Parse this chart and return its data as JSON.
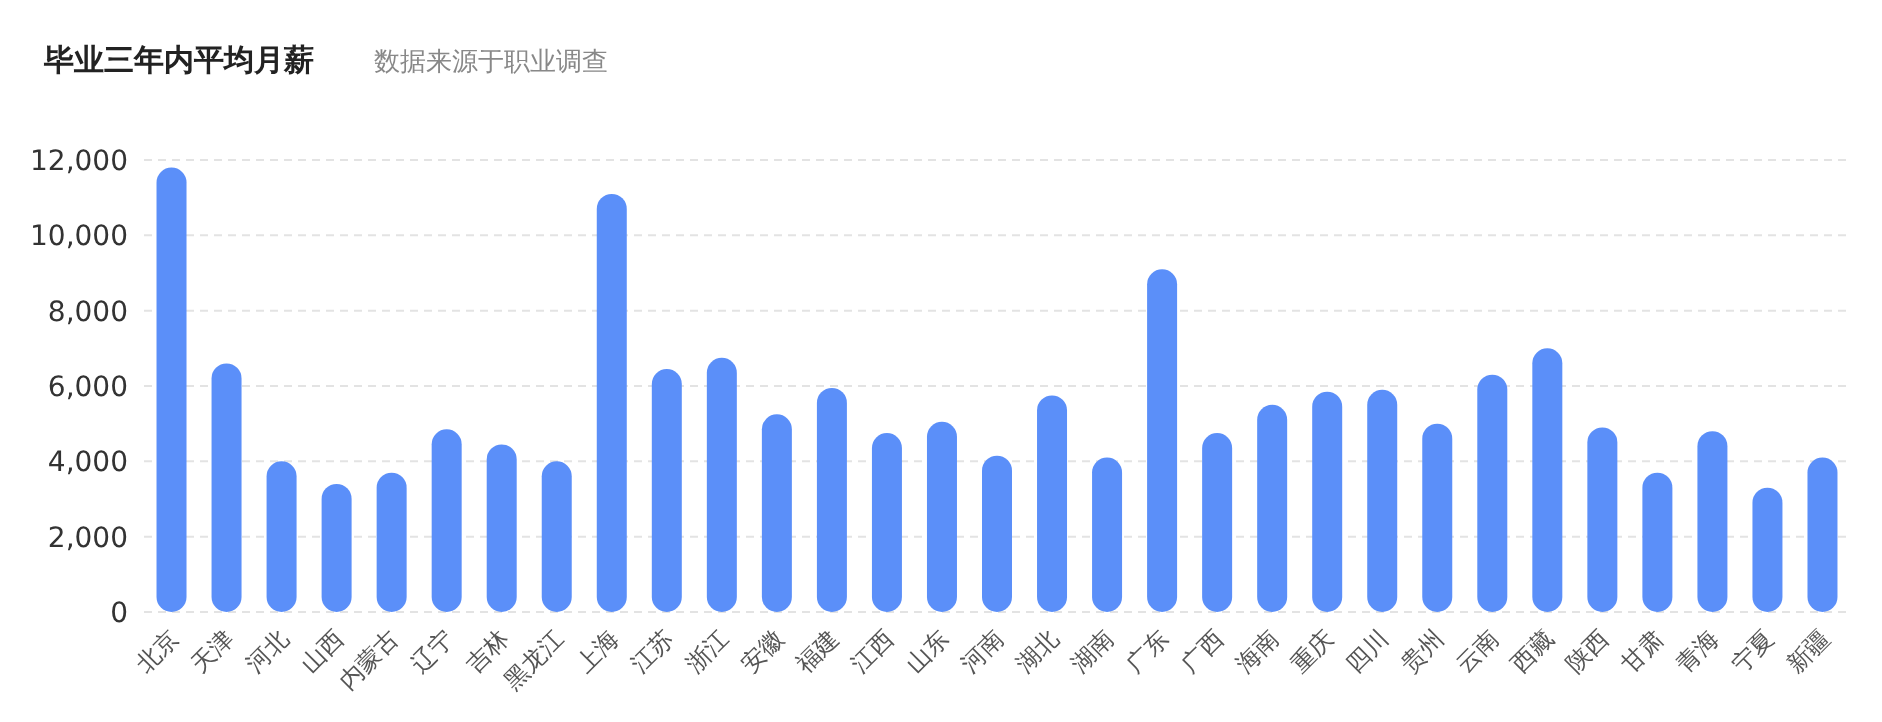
{
  "chart_data": {
    "type": "bar",
    "title": "毕业三年内平均月薪",
    "subtitle": "数据来源于职业调查",
    "categories": [
      "北京",
      "天津",
      "河北",
      "山西",
      "内蒙古",
      "辽宁",
      "吉林",
      "黑龙江",
      "上海",
      "江苏",
      "浙江",
      "安徽",
      "福建",
      "江西",
      "山东",
      "河南",
      "湖北",
      "湖南",
      "广东",
      "广西",
      "海南",
      "重庆",
      "四川",
      "贵州",
      "云南",
      "西藏",
      "陕西",
      "甘肃",
      "青海",
      "宁夏",
      "新疆"
    ],
    "values": [
      11800,
      6600,
      4000,
      3400,
      3700,
      4850,
      4450,
      4000,
      11100,
      6450,
      6750,
      5250,
      5950,
      4750,
      5050,
      4150,
      5750,
      4100,
      9100,
      4750,
      5500,
      5850,
      5900,
      5000,
      6300,
      7000,
      4900,
      3700,
      4800,
      3300,
      4100
    ],
    "color": "#5b8ff9",
    "ylim": [
      0,
      12000
    ],
    "yticks": [
      {
        "value": 0,
        "label": "0"
      },
      {
        "value": 2000,
        "label": "2,000"
      },
      {
        "value": 4000,
        "label": "4,000"
      },
      {
        "value": 6000,
        "label": "6,000"
      },
      {
        "value": 8000,
        "label": "8,000"
      },
      {
        "value": 10000,
        "label": "10,000"
      },
      {
        "value": 12000,
        "label": "12,000"
      }
    ],
    "grid": "y"
  }
}
